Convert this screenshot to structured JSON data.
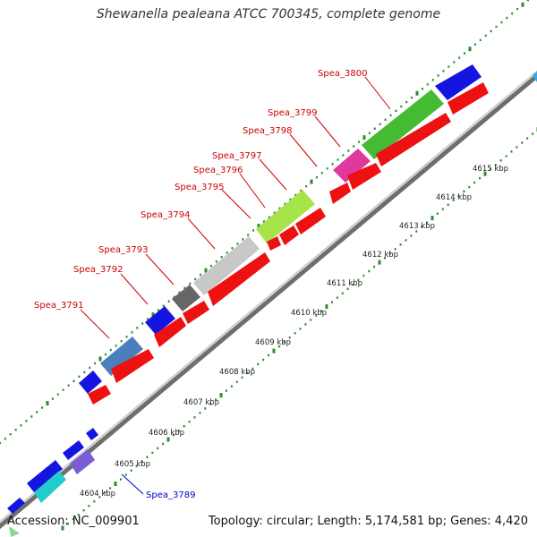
{
  "title": "Shewanella pealeana ATCC 700345, complete genome",
  "footer": {
    "accession": "Accession: NC_009901",
    "summary": "Topology: circular; Length: 5,174,581 bp; Genes: 4,420"
  },
  "colors": {
    "backbone": "#8c8c8c",
    "ticks": "#2e8b2e",
    "gene_label_red": "#cc0000",
    "gene_label_blue": "#0000cc",
    "forward_gene": "#ee1111",
    "reverse_gene_default": "#1515e0"
  },
  "axis": {
    "unit": "kbp",
    "labels": [
      "4604 kbp",
      "4605 kbp",
      "4606 kbp",
      "4607 kbp",
      "4608 kbp",
      "4609 kbp",
      "4610 kbp",
      "4611 kbp",
      "4612 kbp",
      "4613 kbp",
      "4614 kbp",
      "4615 kbp"
    ]
  },
  "gene_labels": [
    "Spea_3791",
    "Spea_3792",
    "Spea_3793",
    "Spea_3794",
    "Spea_3795",
    "Spea_3796",
    "Spea_3797",
    "Spea_3798",
    "Spea_3799",
    "Spea_3800",
    "Spea_3789"
  ]
}
